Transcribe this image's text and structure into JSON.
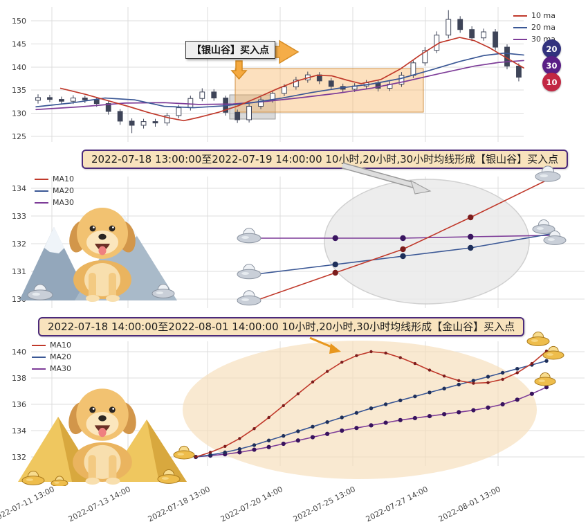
{
  "colors": {
    "ma10": "#c0392b",
    "ma20": "#3a5795",
    "ma30": "#7d3c98",
    "candle": "#3e4458",
    "grid": "#dcdcdc",
    "orange": "#f5a93f",
    "orange_edge": "#d4881c",
    "box_orange": "rgba(247,178,92,0.40)",
    "box_gray": "rgba(160,160,160,0.40)",
    "ellipse_gray": "#ebebeb",
    "ellipse_orange": "#f6ddb9",
    "banner_bg": "#f8e3bd",
    "banner_border": "#4b2a7b",
    "silver": "#c9cfd8",
    "gold": "#eebd4c"
  },
  "icons": {
    "silver_ingot": "sycee-ingot-icon",
    "gold_ingot": "sycee-ingot-icon",
    "dog": "golden-retriever-cartoon",
    "mountain": "snow-mountain",
    "pyramid": "gold-pyramid",
    "buy_arrow": "orange-block-arrow",
    "pointer_arrow": "gray-block-arrow"
  },
  "x_axis": {
    "labels": [
      "2022-07-11 13:00",
      "2022-07-13 14:00",
      "2022-07-18 13:00",
      "2022-07-20 14:00",
      "2022-07-25 13:00",
      "2022-07-27 14:00",
      "2022-08-01 13:00"
    ],
    "tick_x": [
      75,
      185,
      300,
      405,
      510,
      615,
      720
    ]
  },
  "chart_data": [
    {
      "id": "top-candles",
      "type": "candlestick",
      "yticks": [
        125,
        130,
        135,
        140,
        145,
        150
      ],
      "ylim": [
        124,
        153
      ],
      "legend_items": [
        {
          "label": "10 ma",
          "color": "ma10"
        },
        {
          "label": "20 ma",
          "color": "ma20"
        },
        {
          "label": "30 ma",
          "color": "ma30"
        }
      ],
      "annotation": "【银山谷】买入点",
      "badges": [
        {
          "label": "20",
          "color": "#32327e"
        },
        {
          "label": "30",
          "color": "#5a1f86"
        },
        {
          "label": "10",
          "color": "#c22743"
        }
      ],
      "candles": [
        [
          132.8,
          134.1,
          132.1,
          133.4
        ],
        [
          133.4,
          134.0,
          132.4,
          133.0
        ],
        [
          133.0,
          133.6,
          131.9,
          132.6
        ],
        [
          132.6,
          133.9,
          132.0,
          133.3
        ],
        [
          133.3,
          133.8,
          132.2,
          132.9
        ],
        [
          132.9,
          133.5,
          131.4,
          132.1
        ],
        [
          132.1,
          132.6,
          129.7,
          130.4
        ],
        [
          130.4,
          130.9,
          127.5,
          128.3
        ],
        [
          128.3,
          128.9,
          125.7,
          127.4
        ],
        [
          127.4,
          128.8,
          126.7,
          128.2
        ],
        [
          128.2,
          128.8,
          127.1,
          127.9
        ],
        [
          127.9,
          130.1,
          127.3,
          129.5
        ],
        [
          129.5,
          131.8,
          128.9,
          131.2
        ],
        [
          131.2,
          133.8,
          130.6,
          133.2
        ],
        [
          133.2,
          135.4,
          132.6,
          134.6
        ],
        [
          134.6,
          135.2,
          132.7,
          133.3
        ],
        [
          133.3,
          133.8,
          129.5,
          130.2
        ],
        [
          130.2,
          130.8,
          127.9,
          128.6
        ],
        [
          128.6,
          132.1,
          128.0,
          131.5
        ],
        [
          131.5,
          133.5,
          130.9,
          132.9
        ],
        [
          132.9,
          134.9,
          132.3,
          134.3
        ],
        [
          134.3,
          136.3,
          133.7,
          135.7
        ],
        [
          135.7,
          137.9,
          135.1,
          137.2
        ],
        [
          137.2,
          139.0,
          136.6,
          138.3
        ],
        [
          138.3,
          138.9,
          136.3,
          137.0
        ],
        [
          137.0,
          137.6,
          135.1,
          135.8
        ],
        [
          135.8,
          136.4,
          134.5,
          135.2
        ],
        [
          135.2,
          136.5,
          134.6,
          135.9
        ],
        [
          135.9,
          137.2,
          135.3,
          136.6
        ],
        [
          136.6,
          137.2,
          134.7,
          135.4
        ],
        [
          135.4,
          136.9,
          134.8,
          136.3
        ],
        [
          136.3,
          138.9,
          135.7,
          138.2
        ],
        [
          138.2,
          141.6,
          137.6,
          140.9
        ],
        [
          140.9,
          144.3,
          140.3,
          143.6
        ],
        [
          143.6,
          147.7,
          143.0,
          146.9
        ],
        [
          146.9,
          152.3,
          146.2,
          150.3
        ],
        [
          150.3,
          151.0,
          147.4,
          148.1
        ],
        [
          148.1,
          148.8,
          145.6,
          146.3
        ],
        [
          146.3,
          148.3,
          145.7,
          147.6
        ],
        [
          147.6,
          148.2,
          143.6,
          144.3
        ],
        [
          144.3,
          144.9,
          139.5,
          140.2
        ],
        [
          140.2,
          140.8,
          136.9,
          137.8
        ]
      ],
      "series": [
        {
          "name": "10 ma",
          "color": "ma10",
          "points": [
            [
              0.06,
              135.4
            ],
            [
              0.11,
              134.1
            ],
            [
              0.16,
              132.6
            ],
            [
              0.2,
              131.4
            ],
            [
              0.24,
              130.1
            ],
            [
              0.28,
              129.0
            ],
            [
              0.31,
              128.4
            ],
            [
              0.34,
              129.1
            ],
            [
              0.38,
              130.2
            ],
            [
              0.42,
              131.6
            ],
            [
              0.46,
              133.4
            ],
            [
              0.5,
              135.3
            ],
            [
              0.54,
              137.0
            ],
            [
              0.58,
              138.2
            ],
            [
              0.61,
              138.1
            ],
            [
              0.64,
              137.2
            ],
            [
              0.67,
              136.4
            ],
            [
              0.71,
              137.3
            ],
            [
              0.75,
              139.6
            ],
            [
              0.79,
              142.6
            ],
            [
              0.83,
              145.3
            ],
            [
              0.87,
              146.4
            ],
            [
              0.9,
              145.7
            ],
            [
              0.93,
              144.2
            ],
            [
              0.96,
              142.3
            ],
            [
              1,
              139.8
            ]
          ]
        },
        {
          "name": "20 ma",
          "color": "ma20",
          "points": [
            [
              0.01,
              131.4
            ],
            [
              0.08,
              132.2
            ],
            [
              0.15,
              133.3
            ],
            [
              0.21,
              132.9
            ],
            [
              0.27,
              131.5
            ],
            [
              0.33,
              131.2
            ],
            [
              0.39,
              131.6
            ],
            [
              0.45,
              132.3
            ],
            [
              0.51,
              133.3
            ],
            [
              0.57,
              134.5
            ],
            [
              0.63,
              135.5
            ],
            [
              0.69,
              136.3
            ],
            [
              0.75,
              137.5
            ],
            [
              0.81,
              139.3
            ],
            [
              0.87,
              141.2
            ],
            [
              0.92,
              142.5
            ],
            [
              0.96,
              143.0
            ],
            [
              1,
              142.6
            ]
          ]
        },
        {
          "name": "30 ma",
          "color": "ma30",
          "points": [
            [
              0.01,
              130.8
            ],
            [
              0.1,
              131.4
            ],
            [
              0.19,
              132.2
            ],
            [
              0.27,
              132.3
            ],
            [
              0.34,
              131.9
            ],
            [
              0.41,
              132.0
            ],
            [
              0.48,
              132.6
            ],
            [
              0.55,
              133.4
            ],
            [
              0.62,
              134.3
            ],
            [
              0.69,
              135.4
            ],
            [
              0.76,
              136.9
            ],
            [
              0.83,
              138.6
            ],
            [
              0.9,
              140.2
            ],
            [
              0.95,
              141.0
            ],
            [
              1,
              141.4
            ]
          ]
        }
      ]
    },
    {
      "id": "silver-valley",
      "type": "line",
      "title": "2022-07-18 13:00:00至2022-07-19 14:00:00 10小时,20小时,30小时均线形成【银山谷】买入点",
      "yticks": [
        130,
        131,
        132,
        133,
        134
      ],
      "ylim": [
        129.5,
        134.6
      ],
      "legend_items": [
        {
          "label": "MA10",
          "color": "ma10"
        },
        {
          "label": "MA20",
          "color": "ma20"
        },
        {
          "label": "MA30",
          "color": "ma30"
        }
      ],
      "series": [
        {
          "name": "MA10",
          "color": "ma10",
          "dot": "#7c1d1d",
          "t": [
            0,
            0.27,
            0.5,
            0.73,
            1
          ],
          "values": [
            129.95,
            130.95,
            131.8,
            132.95,
            134.35
          ]
        },
        {
          "name": "MA20",
          "color": "ma20",
          "dot": "#1e2f5a",
          "t": [
            0,
            0.27,
            0.5,
            0.73,
            1
          ],
          "values": [
            130.9,
            131.25,
            131.55,
            131.85,
            132.35
          ]
        },
        {
          "name": "MA30",
          "color": "ma30",
          "dot": "#3a1660",
          "t": [
            0,
            0.27,
            0.5,
            0.73,
            1
          ],
          "values": [
            132.2,
            132.2,
            132.2,
            132.25,
            132.3
          ]
        }
      ]
    },
    {
      "id": "golden-valley",
      "type": "line",
      "title": "2022-07-18 14:00:00至2022-08-01 14:00:00 10小时,20小时,30小时均线形成【金山谷】买入点",
      "yticks": [
        132,
        134,
        136,
        138,
        140
      ],
      "ylim": [
        131,
        141
      ],
      "legend_items": [
        {
          "label": "MA10",
          "color": "ma10"
        },
        {
          "label": "MA20",
          "color": "ma20"
        },
        {
          "label": "MA30",
          "color": "ma30"
        }
      ],
      "series": [
        {
          "name": "MA10",
          "color": "ma10",
          "dot": "#7c1d1d",
          "r": 2.2,
          "values": [
            132.0,
            132.35,
            132.8,
            133.4,
            134.15,
            135.0,
            135.9,
            136.8,
            137.7,
            138.5,
            139.2,
            139.7,
            140.0,
            139.9,
            139.55,
            139.1,
            138.6,
            138.15,
            137.8,
            137.6,
            137.65,
            137.9,
            138.4,
            139.1,
            140.05
          ]
        },
        {
          "name": "MA20",
          "color": "ma20",
          "dot": "#1e2f5a",
          "r": 2.7,
          "values": [
            132.0,
            132.15,
            132.35,
            132.6,
            132.9,
            133.25,
            133.6,
            133.95,
            134.3,
            134.65,
            135.0,
            135.35,
            135.7,
            136.0,
            136.3,
            136.6,
            136.9,
            137.2,
            137.5,
            137.8,
            138.1,
            138.4,
            138.7,
            139.0,
            139.3
          ]
        },
        {
          "name": "MA30",
          "color": "ma30",
          "dot": "#38135e",
          "r": 3.1,
          "values": [
            132.0,
            132.1,
            132.2,
            132.35,
            132.55,
            132.75,
            133.0,
            133.25,
            133.5,
            133.75,
            134.0,
            134.2,
            134.4,
            134.6,
            134.8,
            134.95,
            135.1,
            135.25,
            135.4,
            135.55,
            135.75,
            136.0,
            136.35,
            136.8,
            137.3
          ]
        }
      ]
    }
  ]
}
